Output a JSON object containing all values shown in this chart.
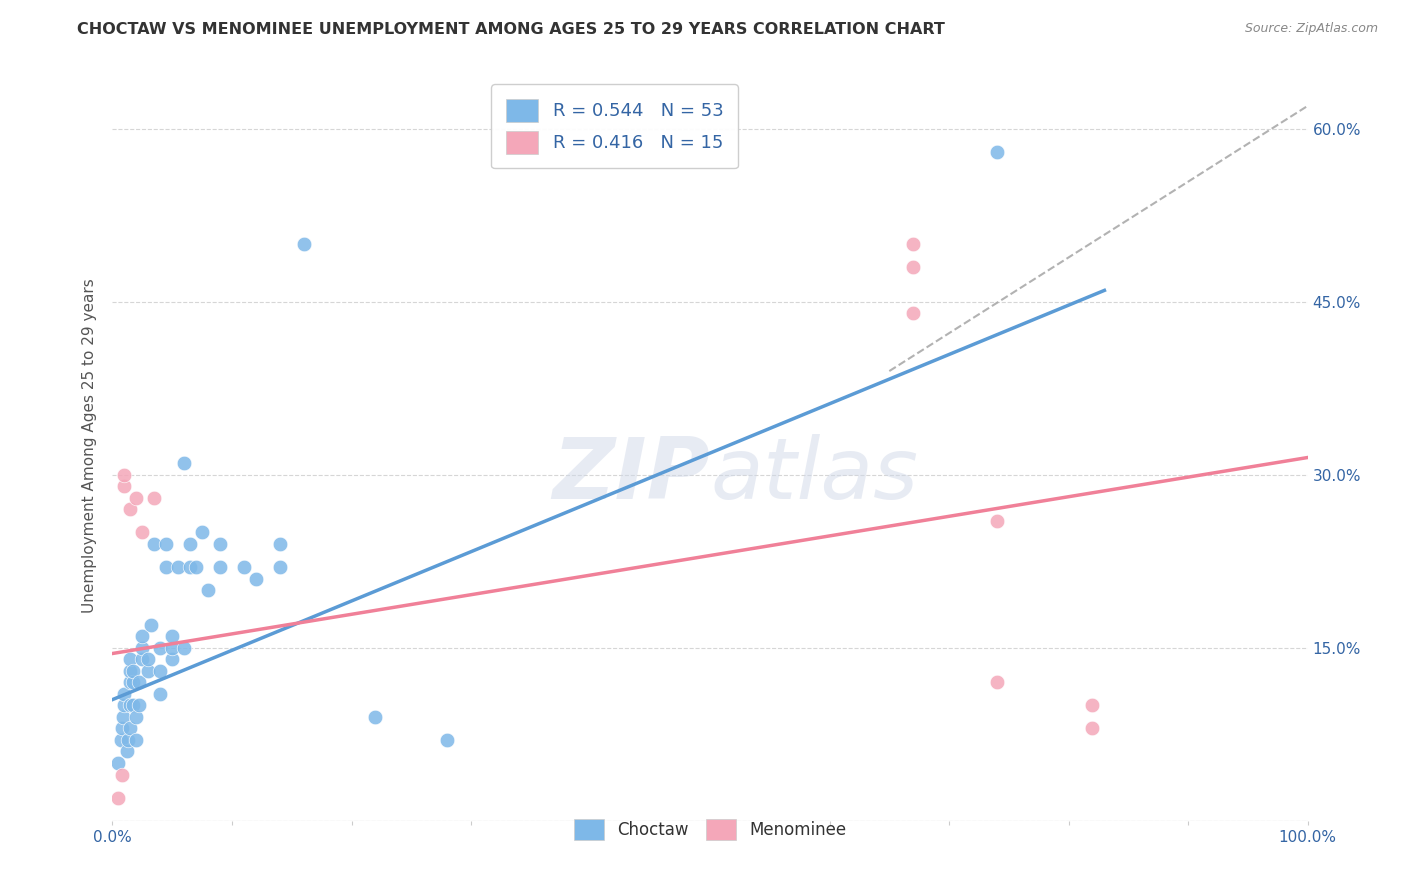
{
  "title": "CHOCTAW VS MENOMINEE UNEMPLOYMENT AMONG AGES 25 TO 29 YEARS CORRELATION CHART",
  "source": "Source: ZipAtlas.com",
  "ylabel": "Unemployment Among Ages 25 to 29 years",
  "xlim": [
    0,
    1.0
  ],
  "ylim": [
    0,
    0.65
  ],
  "xticks": [
    0.0,
    0.1,
    0.2,
    0.3,
    0.4,
    0.5,
    0.6,
    0.7,
    0.8,
    0.9,
    1.0
  ],
  "xticklabels": [
    "0.0%",
    "",
    "",
    "",
    "",
    "",
    "",
    "",
    "",
    "",
    "100.0%"
  ],
  "ytick_positions": [
    0.0,
    0.15,
    0.3,
    0.45,
    0.6
  ],
  "ytick_labels": [
    "",
    "15.0%",
    "30.0%",
    "45.0%",
    "60.0%"
  ],
  "choctaw_color": "#7eb8e8",
  "menominee_color": "#f4a7b9",
  "choctaw_line_color": "#5b9bd5",
  "menominee_line_color": "#f08098",
  "choctaw_R": 0.544,
  "choctaw_N": 53,
  "menominee_R": 0.416,
  "menominee_N": 15,
  "choctaw_scatter": [
    [
      0.005,
      0.05
    ],
    [
      0.007,
      0.07
    ],
    [
      0.008,
      0.08
    ],
    [
      0.009,
      0.09
    ],
    [
      0.01,
      0.1
    ],
    [
      0.01,
      0.11
    ],
    [
      0.012,
      0.06
    ],
    [
      0.013,
      0.07
    ],
    [
      0.015,
      0.08
    ],
    [
      0.015,
      0.1
    ],
    [
      0.015,
      0.12
    ],
    [
      0.015,
      0.13
    ],
    [
      0.015,
      0.14
    ],
    [
      0.017,
      0.1
    ],
    [
      0.017,
      0.12
    ],
    [
      0.017,
      0.13
    ],
    [
      0.02,
      0.07
    ],
    [
      0.02,
      0.09
    ],
    [
      0.022,
      0.1
    ],
    [
      0.022,
      0.12
    ],
    [
      0.025,
      0.14
    ],
    [
      0.025,
      0.15
    ],
    [
      0.025,
      0.16
    ],
    [
      0.03,
      0.13
    ],
    [
      0.03,
      0.14
    ],
    [
      0.032,
      0.17
    ],
    [
      0.035,
      0.24
    ],
    [
      0.04,
      0.11
    ],
    [
      0.04,
      0.13
    ],
    [
      0.04,
      0.15
    ],
    [
      0.045,
      0.22
    ],
    [
      0.045,
      0.24
    ],
    [
      0.05,
      0.14
    ],
    [
      0.05,
      0.15
    ],
    [
      0.05,
      0.16
    ],
    [
      0.055,
      0.22
    ],
    [
      0.06,
      0.15
    ],
    [
      0.065,
      0.22
    ],
    [
      0.065,
      0.24
    ],
    [
      0.07,
      0.22
    ],
    [
      0.075,
      0.25
    ],
    [
      0.08,
      0.2
    ],
    [
      0.09,
      0.22
    ],
    [
      0.09,
      0.24
    ],
    [
      0.11,
      0.22
    ],
    [
      0.12,
      0.21
    ],
    [
      0.14,
      0.24
    ],
    [
      0.14,
      0.22
    ],
    [
      0.16,
      0.5
    ],
    [
      0.74,
      0.58
    ],
    [
      0.06,
      0.31
    ],
    [
      0.22,
      0.09
    ],
    [
      0.28,
      0.07
    ]
  ],
  "menominee_scatter": [
    [
      0.005,
      0.02
    ],
    [
      0.008,
      0.04
    ],
    [
      0.01,
      0.29
    ],
    [
      0.01,
      0.3
    ],
    [
      0.015,
      0.27
    ],
    [
      0.02,
      0.28
    ],
    [
      0.025,
      0.25
    ],
    [
      0.035,
      0.28
    ],
    [
      0.67,
      0.48
    ],
    [
      0.67,
      0.5
    ],
    [
      0.74,
      0.26
    ],
    [
      0.82,
      0.1
    ],
    [
      0.82,
      0.08
    ],
    [
      0.74,
      0.12
    ],
    [
      0.67,
      0.44
    ]
  ],
  "choctaw_trendline": [
    [
      0.0,
      0.105
    ],
    [
      0.83,
      0.46
    ]
  ],
  "menominee_trendline": [
    [
      0.0,
      0.145
    ],
    [
      1.0,
      0.315
    ]
  ],
  "dashed_line": [
    [
      0.65,
      0.39
    ],
    [
      1.0,
      0.62
    ]
  ],
  "watermark_line1": "ZIP",
  "watermark_line2": "atlas",
  "background_color": "#ffffff",
  "legend_color": "#3465a4",
  "grid_color": "#cccccc"
}
